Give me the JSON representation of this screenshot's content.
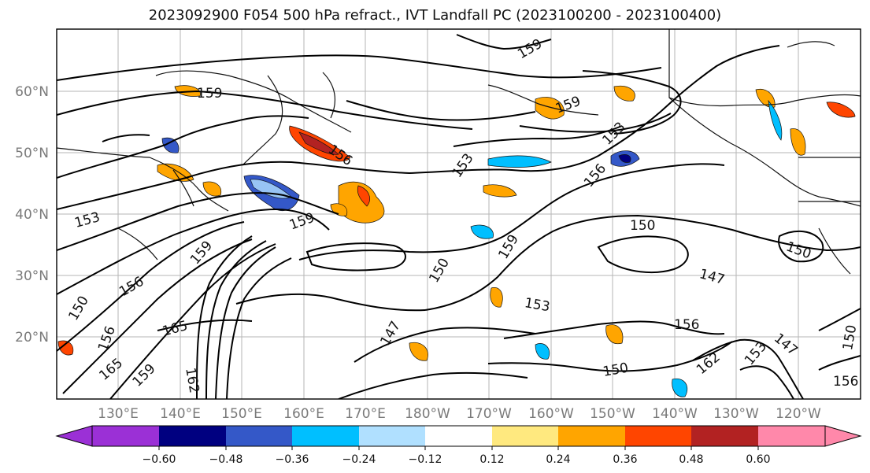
{
  "title": "2023092900 F054 500 hPa refract., IVT Landfall PC (2023100200 - 2023100400)",
  "map": {
    "lat_ticks": [
      "20°N",
      "30°N",
      "40°N",
      "50°N",
      "60°N"
    ],
    "lon_ticks": [
      "130°E",
      "140°E",
      "150°E",
      "160°E",
      "170°E",
      "180°W",
      "170°W",
      "160°W",
      "150°W",
      "140°W",
      "130°W",
      "120°W"
    ],
    "contour_labels": [
      "159",
      "153",
      "150",
      "156",
      "153",
      "156",
      "159",
      "153",
      "147",
      "150",
      "159",
      "153",
      "147",
      "156",
      "150",
      "156",
      "147",
      "150",
      "156",
      "153",
      "162",
      "159",
      "165",
      "159",
      "159",
      "150",
      "156",
      "165",
      "162",
      "150",
      "159"
    ]
  },
  "colorbar": {
    "ticks": [
      "−0.60",
      "−0.48",
      "−0.36",
      "−0.24",
      "−0.12",
      "0.12",
      "0.24",
      "0.36",
      "0.48",
      "0.60"
    ],
    "colors": [
      "#9b30d6",
      "#000080",
      "#3458c8",
      "#00bfff",
      "#b0e0ff",
      "#ffffff",
      "#ffe97f",
      "#ffa500",
      "#ff4500",
      "#b22222",
      "#ff88aa"
    ]
  }
}
